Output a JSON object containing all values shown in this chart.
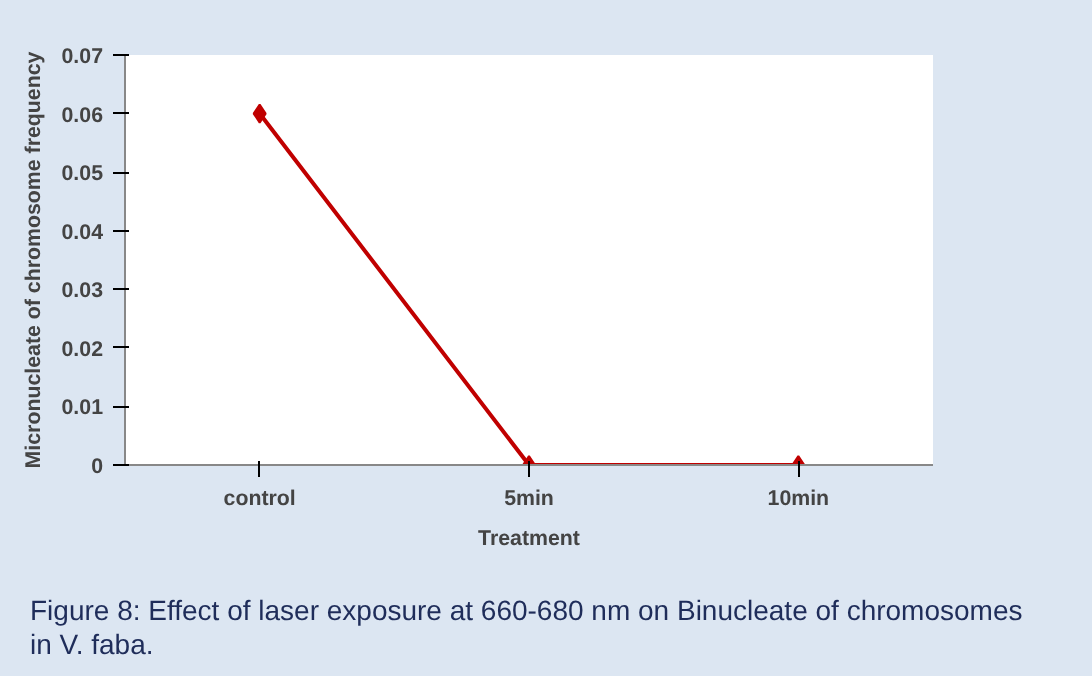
{
  "chart_data": {
    "type": "line",
    "xlabel": "Treatment",
    "ylabel": "Micronucleate of chromosome frequency",
    "categories": [
      "control",
      "5min",
      "10min"
    ],
    "series": [
      {
        "color": "#c00000",
        "values": [
          0.06,
          0,
          0
        ]
      }
    ],
    "ylim": [
      0,
      0.07
    ],
    "yticks": [
      0,
      0.01,
      0.02,
      0.03,
      0.04,
      0.05,
      0.06,
      0.07
    ],
    "marker": "diamond",
    "grid": false,
    "annotations": [
      "Figure 8: Effect of laser exposure at 660-680 nm on Binucleate of chromosomes in V. faba."
    ]
  }
}
